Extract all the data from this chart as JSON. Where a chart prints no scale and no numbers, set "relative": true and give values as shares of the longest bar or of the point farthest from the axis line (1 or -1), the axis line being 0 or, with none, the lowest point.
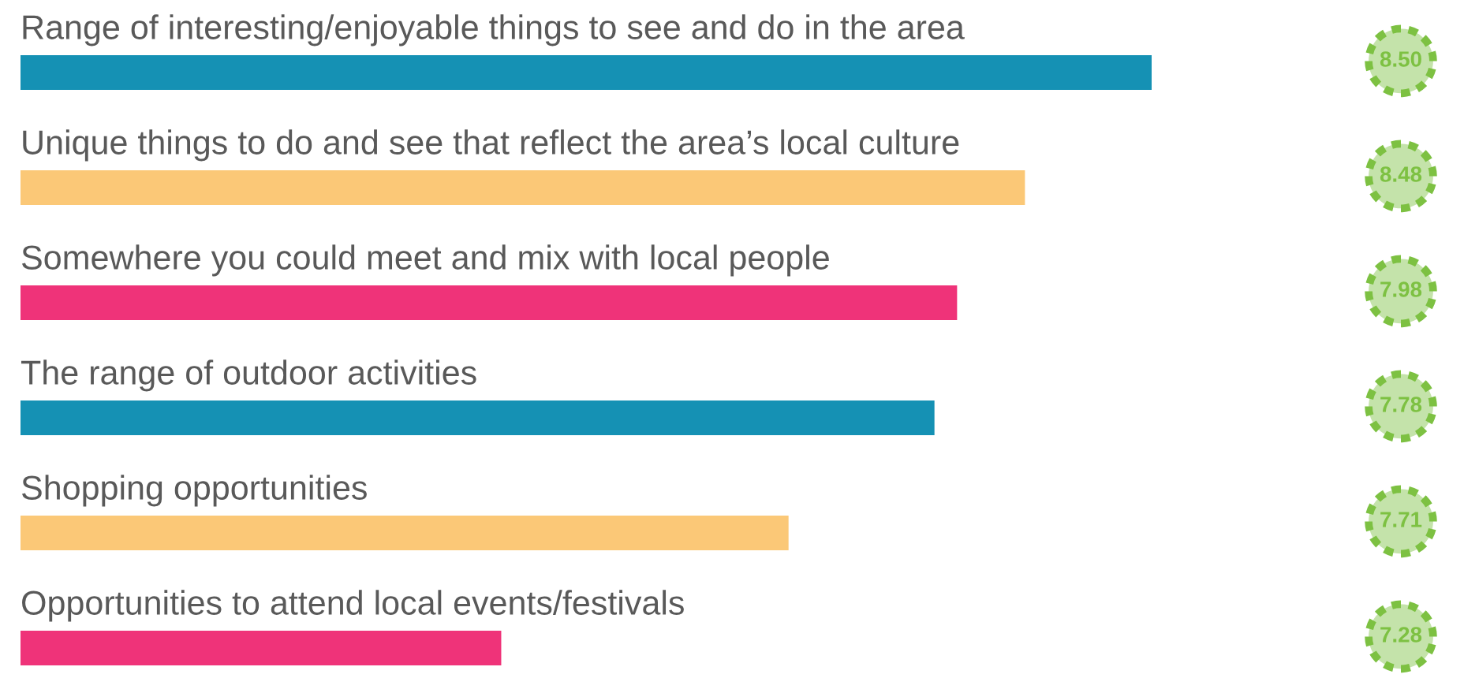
{
  "chart_data": {
    "type": "bar",
    "orientation": "horizontal",
    "relative": true,
    "categories": [
      "Range of interesting/enjoyable things to see and do in the area",
      "Unique things to do and see that reflect the area’s local culture",
      "Somewhere you could meet and mix with local people",
      "The range of outdoor activities",
      "Shopping opportunities",
      "Opportunities to attend local events/festivals"
    ],
    "values": [
      1,
      0.888,
      0.828,
      0.808,
      0.679,
      0.425
    ],
    "colors": [
      "#1591b4",
      "#fbc877",
      "#ef3379",
      "#1591b4",
      "#fbc877",
      "#ef3379"
    ],
    "annotations": [
      "8.50",
      "8.48",
      "7.98",
      "7.78",
      "7.71",
      "7.28"
    ]
  }
}
